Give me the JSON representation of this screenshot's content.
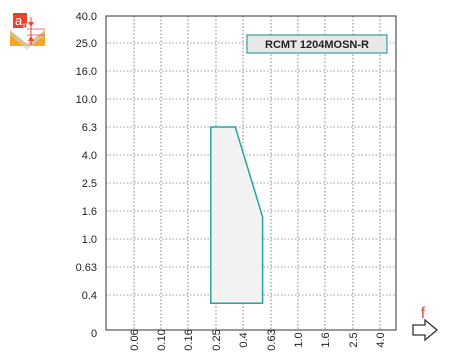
{
  "chart_data": {
    "type": "area",
    "x_ticks": [
      "0.06",
      "0.10",
      "0.16",
      "0.25",
      "0.4",
      "0.63",
      "1.0",
      "1.6",
      "2.5",
      "4.0"
    ],
    "y_ticks": [
      "40.0",
      "25.0",
      "16.0",
      "10.0",
      "6.3",
      "4.0",
      "2.5",
      "1.6",
      "1.0",
      "0.63",
      "0.4",
      "0"
    ],
    "x_origin_label": "0",
    "series": [
      {
        "name": "RCMT 1204MOSN-R",
        "points": [
          {
            "x": 0.23,
            "y": 0.35
          },
          {
            "x": 0.23,
            "y": 6.3
          },
          {
            "x": 0.35,
            "y": 6.3
          },
          {
            "x": 0.55,
            "y": 1.45
          },
          {
            "x": 0.55,
            "y": 0.35
          }
        ]
      }
    ],
    "legend": {
      "text": "RCMT 1204MOSN-R",
      "placement": "top-right"
    },
    "xlabel": "f",
    "ylabel": "a",
    "ylabel_subscript": "p",
    "x_scale": "log",
    "y_scale": "log",
    "grid": true
  },
  "colors": {
    "series_stroke": "#2aa59a",
    "series_fill": "#f2f2f2",
    "legend_fill": "#e8e8e8",
    "accent": "#e8432e",
    "insert_badge": "#f5a623",
    "arrow_stroke": "#333333",
    "grid": "#333333"
  },
  "icons": {
    "y_axis_badge": "insert-depth-of-cut-icon",
    "x_axis_arrow": "right-arrow-icon"
  }
}
